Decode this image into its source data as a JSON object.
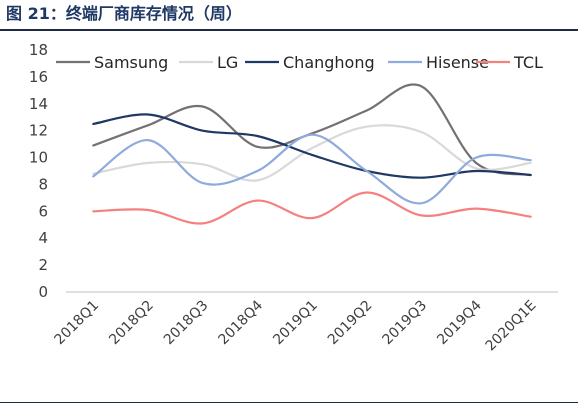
{
  "figure": {
    "title": "图 21：终端厂商库存情况（周）"
  },
  "chart_data": {
    "type": "line",
    "title": "",
    "xlabel": "",
    "ylabel": "",
    "ylim": [
      0,
      18
    ],
    "yticks": [
      0,
      2,
      4,
      6,
      8,
      10,
      12,
      14,
      16,
      18
    ],
    "grid": false,
    "legend_position": "top",
    "smooth": true,
    "categories": [
      "2018Q1",
      "2018Q2",
      "2018Q3",
      "2018Q4",
      "2019Q1",
      "2019Q2",
      "2019Q3",
      "2019Q4",
      "2020Q1E"
    ],
    "series": [
      {
        "name": "Samsung",
        "color": "#767171",
        "values": [
          10.9,
          12.4,
          13.8,
          10.8,
          11.8,
          13.5,
          15.3,
          9.6,
          8.7
        ]
      },
      {
        "name": "LG",
        "color": "#d9d9d9",
        "values": [
          8.8,
          9.6,
          9.5,
          8.3,
          10.7,
          12.3,
          11.9,
          9.2,
          9.6
        ]
      },
      {
        "name": "Changhong",
        "color": "#203864",
        "values": [
          12.5,
          13.2,
          12.0,
          11.6,
          10.2,
          9.0,
          8.5,
          9.0,
          8.7
        ]
      },
      {
        "name": "Hisense",
        "color": "#8faadc",
        "values": [
          8.6,
          11.3,
          8.1,
          9.0,
          11.7,
          9.0,
          6.6,
          10.0,
          9.8
        ]
      },
      {
        "name": "TCL",
        "color": "#f4817f",
        "values": [
          6.0,
          6.1,
          5.1,
          6.8,
          5.5,
          7.4,
          5.7,
          6.2,
          5.6
        ]
      }
    ]
  }
}
